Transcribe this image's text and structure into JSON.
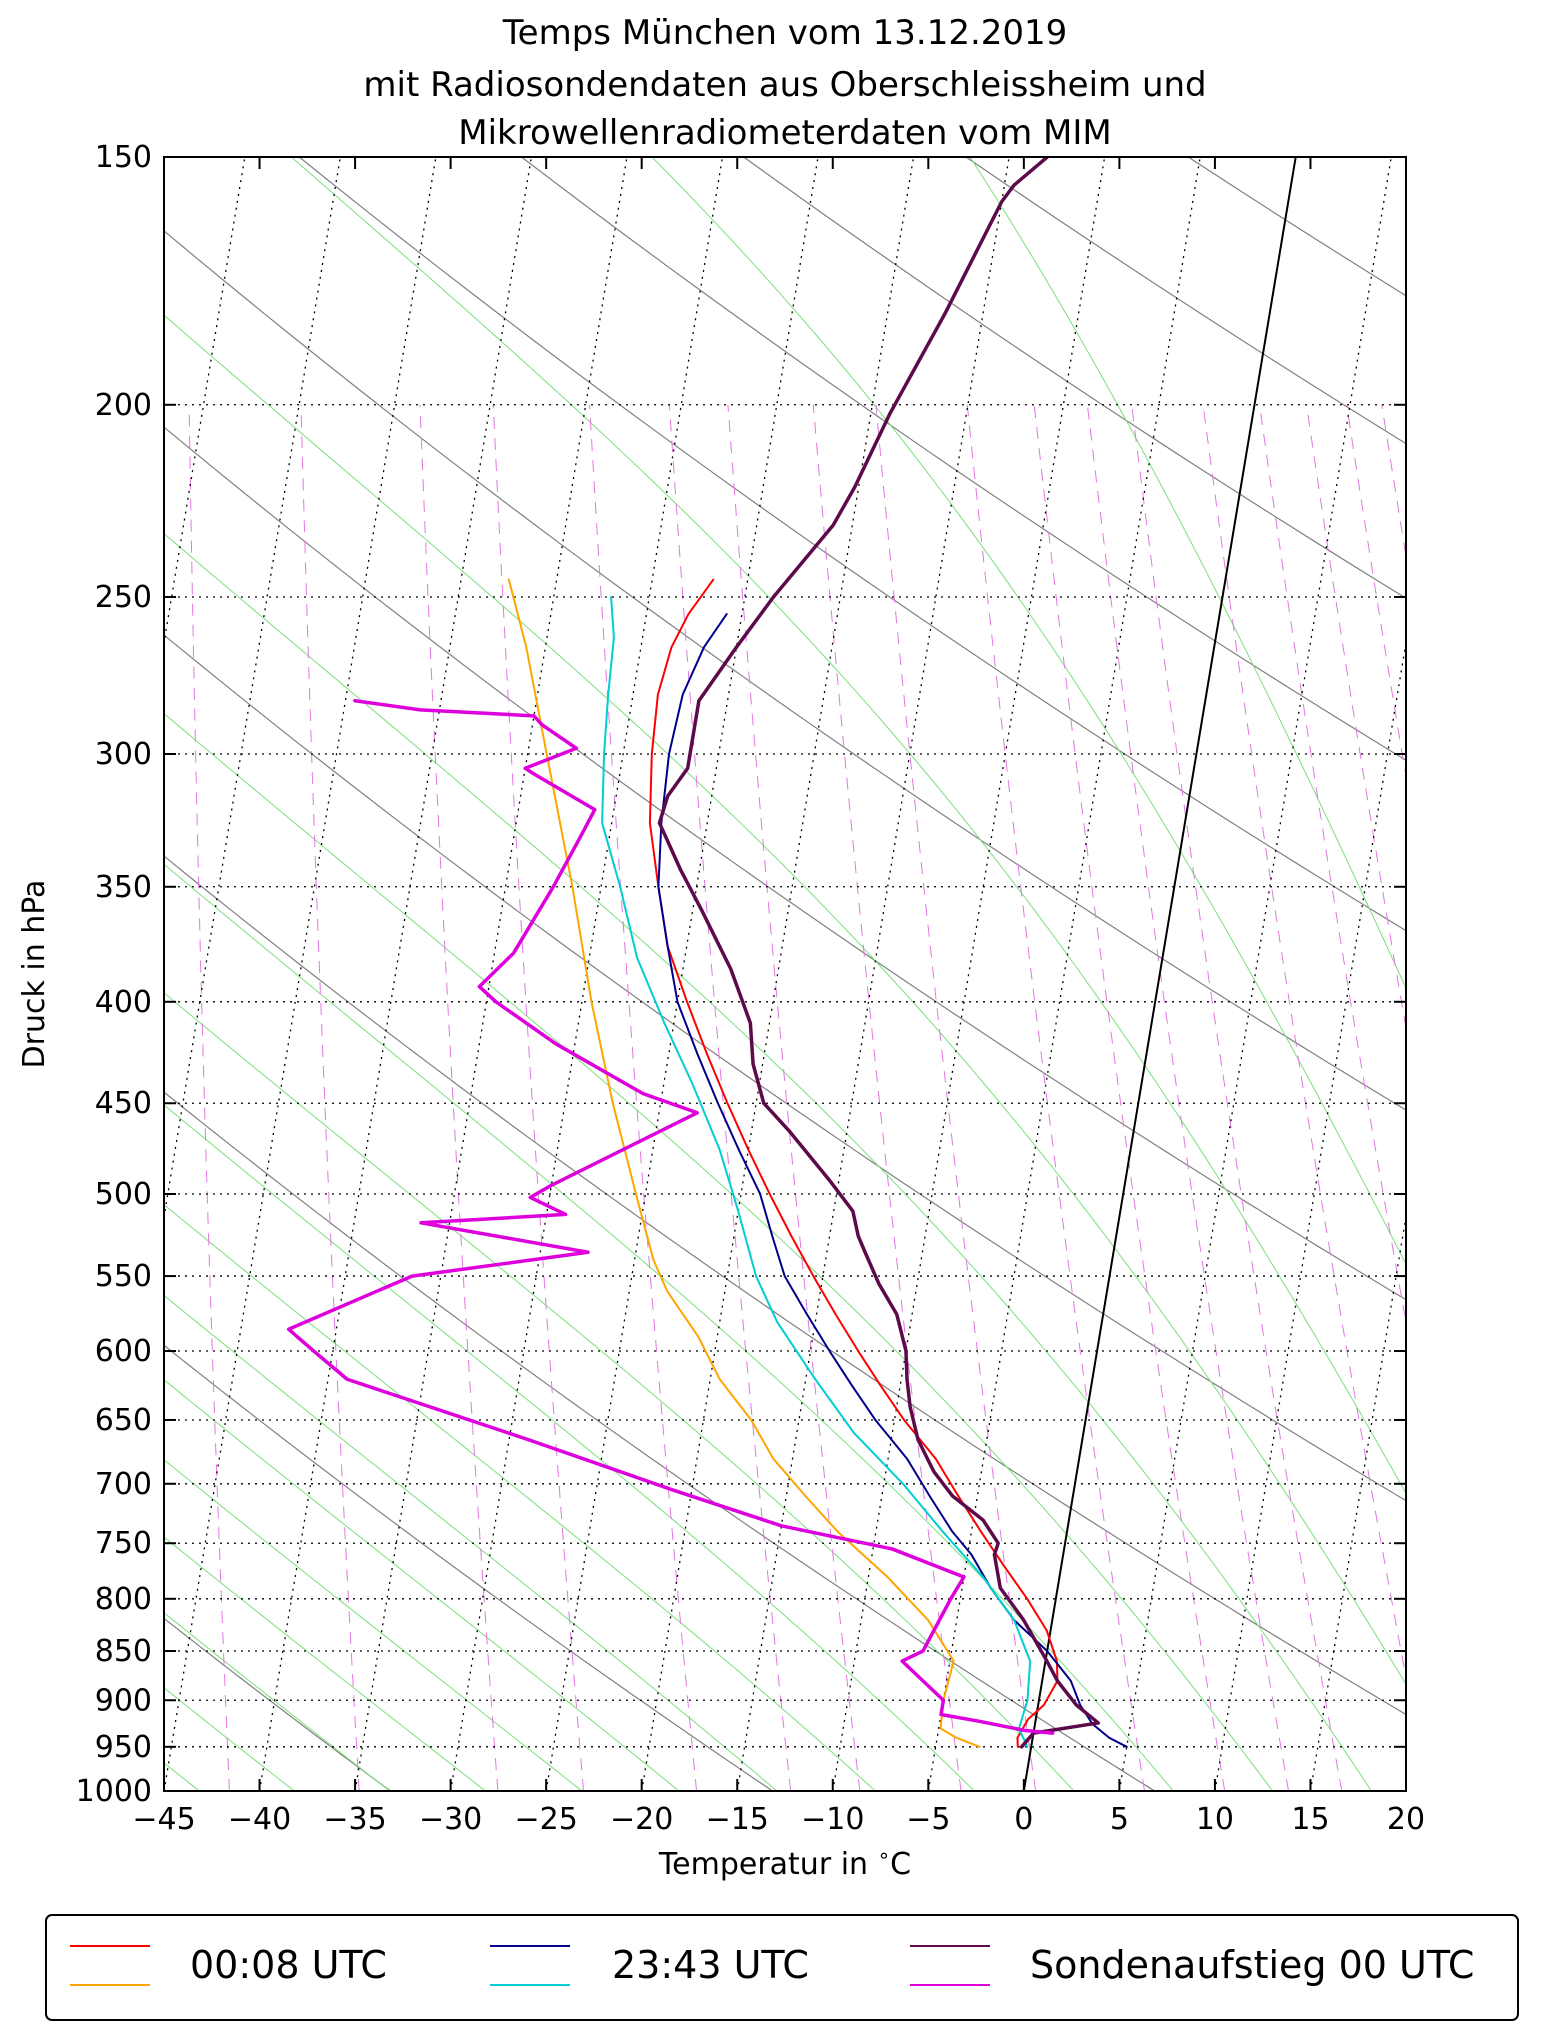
{
  "chart_data": {
    "type": "skew-t",
    "title": [
      "Temps München vom 13.12.2019",
      "mit Radiosondendaten aus Oberschleissheim und",
      "Mikrowellenradiometerdaten vom MIM"
    ],
    "xlabel": "Temperatur in °C",
    "xlabel_prefix": "Temperatur in ",
    "xlabel_unit": "C",
    "ylabel": "Druck in hPa",
    "xlim": [
      -45,
      20
    ],
    "ylim": [
      1000,
      150
    ],
    "x_ticks": [
      -45,
      -40,
      -35,
      -30,
      -25,
      -20,
      -15,
      -10,
      -5,
      0,
      5,
      10,
      15,
      20
    ],
    "x_tick_labels": [
      "−45",
      "−40",
      "−35",
      "−30",
      "−25",
      "−20",
      "−15",
      "−10",
      "−5",
      "0",
      "5",
      "10",
      "15",
      "20"
    ],
    "y_ticks": [
      1000,
      950,
      900,
      850,
      800,
      750,
      700,
      650,
      600,
      550,
      500,
      450,
      400,
      350,
      300,
      250,
      200,
      150
    ],
    "y_tick_labels": [
      "1000",
      "950",
      "900",
      "850",
      "800",
      "750",
      "700",
      "650",
      "600",
      "550",
      "500",
      "450",
      "400",
      "350",
      "300",
      "250",
      "200",
      "150"
    ],
    "grid": "dotted horizontal isobars, dotted skewed isotherms, dry adiabats (gray), moist adiabats (green), mixing ratio lines (dashed magenta)",
    "legend": {
      "position": "bottom",
      "entries": [
        {
          "label": "00:08 UTC",
          "colors": [
            "#ff0000",
            "#ffa500"
          ]
        },
        {
          "label": "23:43 UTC",
          "colors": [
            "#00008b",
            "#00ced1"
          ]
        },
        {
          "label": "Sondenaufstieg 00 UTC",
          "colors": [
            "#5c0a4a",
            "#dd00dd"
          ]
        }
      ]
    },
    "series": [
      {
        "name": "00:08 UTC Temperatur",
        "color": "#ff0000",
        "width": 2,
        "points": [
          [
            -0.7,
            950
          ],
          [
            -0.8,
            940
          ],
          [
            -0.4,
            920
          ],
          [
            0.3,
            905
          ],
          [
            0.8,
            880
          ],
          [
            0.6,
            860
          ],
          [
            -0.2,
            830
          ],
          [
            -1.5,
            800
          ],
          [
            -3,
            770
          ],
          [
            -4.5,
            740
          ],
          [
            -6,
            710
          ],
          [
            -7.5,
            680
          ],
          [
            -9.5,
            650
          ],
          [
            -11,
            625
          ],
          [
            -12.5,
            600
          ],
          [
            -14,
            575
          ],
          [
            -15.5,
            550
          ],
          [
            -17,
            525
          ],
          [
            -18.5,
            500
          ],
          [
            -20,
            475
          ],
          [
            -21.5,
            450
          ],
          [
            -23,
            425
          ],
          [
            -24.5,
            400
          ],
          [
            -26,
            375
          ],
          [
            -27,
            350
          ],
          [
            -28,
            325
          ],
          [
            -28.5,
            300
          ],
          [
            -28.7,
            280
          ],
          [
            -28.4,
            265
          ],
          [
            -27.8,
            255
          ],
          [
            -26.8,
            245
          ]
        ]
      },
      {
        "name": "00:08 UTC Taupunkt",
        "color": "#ffa500",
        "width": 2,
        "points": [
          [
            -2.7,
            950
          ],
          [
            -4,
            940
          ],
          [
            -4.9,
            930
          ],
          [
            -5,
            900
          ],
          [
            -4.8,
            860
          ],
          [
            -6.5,
            820
          ],
          [
            -9,
            780
          ],
          [
            -12,
            740
          ],
          [
            -14,
            710
          ],
          [
            -16,
            680
          ],
          [
            -17.5,
            650
          ],
          [
            -19.5,
            620
          ],
          [
            -21,
            590
          ],
          [
            -23,
            560
          ],
          [
            -24,
            540
          ],
          [
            -25.5,
            500
          ],
          [
            -27.5,
            450
          ],
          [
            -29.5,
            400
          ],
          [
            -31.5,
            350
          ],
          [
            -34,
            300
          ],
          [
            -36,
            265
          ],
          [
            -37.5,
            245
          ]
        ]
      },
      {
        "name": "23:43 UTC Temperatur",
        "color": "#00008b",
        "width": 2,
        "points": [
          [
            5,
            950
          ],
          [
            4,
            940
          ],
          [
            3,
            925
          ],
          [
            2.2,
            905
          ],
          [
            1.5,
            880
          ],
          [
            0,
            850
          ],
          [
            -2,
            820
          ],
          [
            -3.5,
            790
          ],
          [
            -4.8,
            760
          ],
          [
            -6,
            740
          ],
          [
            -7.5,
            710
          ],
          [
            -9,
            680
          ],
          [
            -11,
            650
          ],
          [
            -12.5,
            625
          ],
          [
            -14,
            600
          ],
          [
            -15.5,
            575
          ],
          [
            -17,
            550
          ],
          [
            -18,
            525
          ],
          [
            -19,
            500
          ],
          [
            -20.5,
            475
          ],
          [
            -22,
            450
          ],
          [
            -23.5,
            425
          ],
          [
            -25,
            400
          ],
          [
            -26,
            375
          ],
          [
            -27,
            350
          ],
          [
            -27.4,
            325
          ],
          [
            -27.6,
            300
          ],
          [
            -27.4,
            280
          ],
          [
            -26.7,
            265
          ],
          [
            -25.8,
            255
          ]
        ]
      },
      {
        "name": "23:43 UTC Taupunkt",
        "color": "#00ced1",
        "width": 2,
        "points": [
          [
            -0.2,
            950
          ],
          [
            -0.8,
            930
          ],
          [
            -0.6,
            900
          ],
          [
            -0.8,
            860
          ],
          [
            -2,
            820
          ],
          [
            -4,
            780
          ],
          [
            -6.5,
            740
          ],
          [
            -9,
            700
          ],
          [
            -12,
            660
          ],
          [
            -14.5,
            620
          ],
          [
            -17,
            580
          ],
          [
            -18.5,
            550
          ],
          [
            -20,
            510
          ],
          [
            -21.5,
            475
          ],
          [
            -23.5,
            440
          ],
          [
            -25.5,
            410
          ],
          [
            -27.5,
            380
          ],
          [
            -29,
            350
          ],
          [
            -30.5,
            325
          ],
          [
            -31,
            300
          ],
          [
            -31.3,
            280
          ],
          [
            -31.5,
            262
          ],
          [
            -32,
            250
          ]
        ]
      },
      {
        "name": "Sondenaufstieg 00 UTC Temperatur",
        "color": "#5c0a4a",
        "width": 3.5,
        "points": [
          [
            -0.5,
            950
          ],
          [
            0,
            935
          ],
          [
            3.3,
            924
          ],
          [
            2,
            905
          ],
          [
            0.8,
            880
          ],
          [
            0,
            858
          ],
          [
            -1.5,
            820
          ],
          [
            -3,
            790
          ],
          [
            -3.6,
            760
          ],
          [
            -3.5,
            750
          ],
          [
            -4.5,
            730
          ],
          [
            -6.3,
            710
          ],
          [
            -7.5,
            690
          ],
          [
            -8.6,
            665
          ],
          [
            -9.3,
            640
          ],
          [
            -9.7,
            620
          ],
          [
            -10,
            600
          ],
          [
            -10.8,
            575
          ],
          [
            -12,
            555
          ],
          [
            -13,
            535
          ],
          [
            -13.5,
            525
          ],
          [
            -14,
            510
          ],
          [
            -15.5,
            492
          ],
          [
            -18,
            465
          ],
          [
            -19.6,
            450
          ],
          [
            -20.5,
            430
          ],
          [
            -21,
            410
          ],
          [
            -22.5,
            385
          ],
          [
            -24.5,
            360
          ],
          [
            -26,
            343
          ],
          [
            -27.5,
            325
          ],
          [
            -27.3,
            315
          ],
          [
            -26.5,
            305
          ],
          [
            -26.5,
            293
          ],
          [
            -26.5,
            282
          ],
          [
            -25,
            265
          ],
          [
            -23.5,
            250
          ],
          [
            -21,
            230
          ],
          [
            -20.2,
            220
          ],
          [
            -19,
            202
          ],
          [
            -17,
            180
          ],
          [
            -15,
            158
          ],
          [
            -14.5,
            155
          ],
          [
            -13,
            150
          ]
        ]
      },
      {
        "name": "Sondenaufstieg 00 UTC Taupunkt",
        "color": "#dd00dd",
        "width": 3.5,
        "points": [
          [
            1,
            935
          ],
          [
            -0.5,
            932
          ],
          [
            -3,
            922
          ],
          [
            -5,
            915
          ],
          [
            -5,
            900
          ],
          [
            -7.5,
            860
          ],
          [
            -6.5,
            850
          ],
          [
            -5.5,
            800
          ],
          [
            -5,
            780
          ],
          [
            -9,
            755
          ],
          [
            -15,
            735
          ],
          [
            -21,
            705
          ],
          [
            -29,
            665
          ],
          [
            -39,
            620
          ],
          [
            -41,
            600
          ],
          [
            -42.5,
            585
          ],
          [
            -36.5,
            550
          ],
          [
            -27.5,
            535
          ],
          [
            -36.5,
            517
          ],
          [
            -29,
            512
          ],
          [
            -31,
            502
          ],
          [
            -30,
            495
          ],
          [
            -23,
            455
          ],
          [
            -26,
            445
          ],
          [
            -31,
            420
          ],
          [
            -34.5,
            400
          ],
          [
            -35.5,
            393
          ],
          [
            -34,
            378
          ],
          [
            -32.5,
            350
          ],
          [
            -31.5,
            330
          ],
          [
            -31,
            320
          ],
          [
            -34.5,
            307
          ],
          [
            -35,
            305
          ],
          [
            -32.5,
            298
          ],
          [
            -34.5,
            290
          ],
          [
            -35,
            287
          ],
          [
            -41,
            285
          ],
          [
            -44.5,
            282
          ]
        ]
      }
    ]
  }
}
